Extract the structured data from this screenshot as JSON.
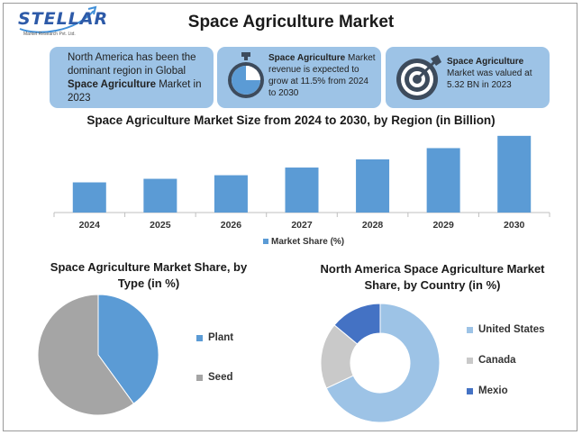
{
  "logo": {
    "word": "STELLAR",
    "sub": "Market Research Pvt. Ltd."
  },
  "title": "Space Agriculture Market",
  "info_boxes": [
    {
      "pre": "North America has been the dominant region in Global ",
      "bold": "Space Agriculture",
      "post": " Market in 2023"
    },
    {
      "pre": "",
      "bold": "Space Agriculture",
      "post": " Market revenue is expected to grow at 11.5% from 2024 to 2030",
      "icon": "stopwatch-icon"
    },
    {
      "pre": "",
      "bold": "Space Agriculture",
      "post": " Market was valued at 5.32 BN in 2023",
      "icon": "target-icon"
    }
  ],
  "colors": {
    "blue": "#5b9bd5",
    "grey": "#a5a5a5",
    "light_blue": "#9dc3e6",
    "dark_blue": "#4472c4"
  },
  "chart_data": [
    {
      "type": "bar",
      "title": "Space Agriculture Market Size from 2024 to 2030, by Region (in Billion)",
      "categories": [
        "2024",
        "2025",
        "2026",
        "2027",
        "2028",
        "2029",
        "2030"
      ],
      "series": [
        {
          "name": "Market Share (%)",
          "values": [
            5.9,
            6.6,
            7.3,
            8.8,
            10.4,
            12.6,
            15.0
          ]
        }
      ],
      "ylim": [
        0,
        15.5
      ],
      "legend": "bottom",
      "grid": false
    },
    {
      "type": "pie",
      "title": "Space Agriculture Market Share, by Type (in %)",
      "categories": [
        "Plant",
        "Seed"
      ],
      "values": [
        40,
        60
      ],
      "legend": "right"
    },
    {
      "type": "pie",
      "title": "North America Space Agriculture Market Share, by Country (in %)",
      "categories": [
        "United States",
        "Canada",
        "Mexio"
      ],
      "values": [
        68,
        18,
        14
      ],
      "legend": "right"
    }
  ]
}
